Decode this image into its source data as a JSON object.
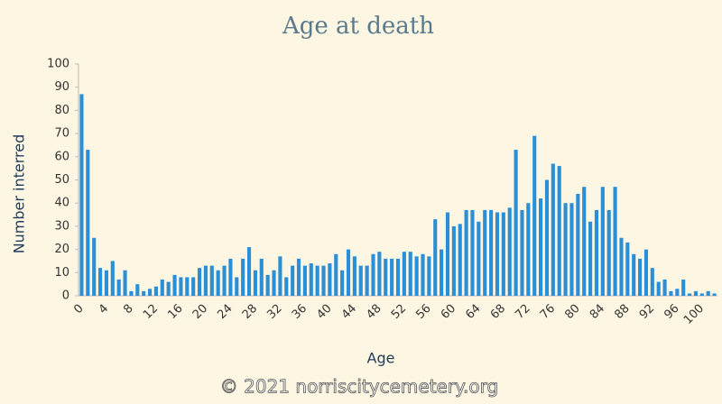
{
  "chart_data": {
    "type": "bar",
    "title": "Age at death",
    "x_label": "Age",
    "y_label": "Number interred",
    "footer": "© 2021 norriscitycemetery.org",
    "categories": [
      "0",
      null,
      null,
      null,
      "4",
      null,
      null,
      null,
      "8",
      null,
      null,
      null,
      "12",
      null,
      null,
      null,
      "16",
      null,
      null,
      null,
      "20",
      null,
      null,
      null,
      "24",
      null,
      null,
      null,
      "28",
      null,
      null,
      null,
      "32",
      null,
      null,
      null,
      "36",
      null,
      null,
      null,
      "40",
      null,
      null,
      null,
      "44",
      null,
      null,
      null,
      "48",
      null,
      null,
      null,
      "52",
      null,
      null,
      null,
      "56",
      null,
      null,
      null,
      "60",
      null,
      null,
      null,
      "64",
      null,
      null,
      null,
      "68",
      null,
      null,
      null,
      "72",
      null,
      null,
      null,
      "76",
      null,
      null,
      null,
      "80",
      null,
      null,
      null,
      "84",
      null,
      null,
      null,
      "88",
      null,
      null,
      null,
      "92",
      null,
      null,
      null,
      "96",
      null,
      null,
      null,
      "100",
      null,
      null
    ],
    "values": [
      87,
      63,
      25,
      12,
      11,
      15,
      7,
      11,
      2,
      5,
      2,
      3,
      4,
      7,
      6,
      9,
      8,
      8,
      8,
      12,
      13,
      13,
      11,
      13,
      16,
      8,
      16,
      21,
      11,
      16,
      9,
      11,
      17,
      8,
      13,
      16,
      13,
      14,
      13,
      13,
      14,
      18,
      11,
      20,
      17,
      13,
      13,
      18,
      19,
      16,
      16,
      16,
      19,
      19,
      17,
      18,
      17,
      33,
      20,
      36,
      30,
      31,
      37,
      37,
      32,
      37,
      37,
      36,
      36,
      38,
      63,
      37,
      40,
      69,
      42,
      50,
      57,
      56,
      40,
      40,
      44,
      47,
      32,
      37,
      47,
      37,
      47,
      25,
      23,
      18,
      16,
      20,
      12,
      6,
      7,
      2,
      3,
      7,
      1,
      2,
      1,
      2,
      1
    ],
    "color": "#2a8fd6",
    "ylim": [
      0,
      100
    ],
    "yticks": [
      0,
      10,
      20,
      30,
      40,
      50,
      60,
      70,
      80,
      90,
      100
    ],
    "grid": false
  }
}
